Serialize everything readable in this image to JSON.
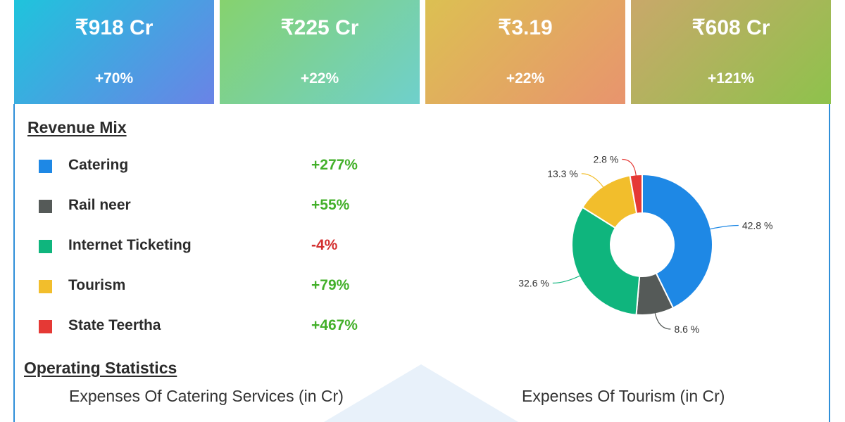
{
  "kpis": [
    {
      "value": "₹918 Cr",
      "change": "+70%"
    },
    {
      "value": "₹225 Cr",
      "change": "+22%"
    },
    {
      "value": "₹3.19",
      "change": "+22%"
    },
    {
      "value": "₹608 Cr",
      "change": "+121%"
    }
  ],
  "revenue_mix": {
    "title": "Revenue Mix",
    "items": [
      {
        "label": "Catering",
        "change": "+277%",
        "color": "#1e88e5",
        "change_color": "#43b02a"
      },
      {
        "label": "Rail neer",
        "change": "+55%",
        "color": "#555a58",
        "change_color": "#43b02a"
      },
      {
        "label": "Internet Ticketing",
        "change": "-4%",
        "color": "#0fb57d",
        "change_color": "#d32f2f"
      },
      {
        "label": "Tourism",
        "change": "+79%",
        "color": "#f2be2c",
        "change_color": "#43b02a"
      },
      {
        "label": "State Teertha",
        "change": "+467%",
        "color": "#e53935",
        "change_color": "#43b02a"
      }
    ]
  },
  "chart_data": {
    "type": "pie",
    "donut": true,
    "categories": [
      "Catering",
      "Rail neer",
      "Internet Ticketing",
      "Tourism",
      "State Teertha"
    ],
    "values": [
      42.8,
      8.6,
      32.6,
      13.3,
      2.8
    ],
    "data_labels": [
      "42.8 %",
      "8.6 %",
      "32.6 %",
      "13.3 %",
      "2.8 %"
    ],
    "colors": [
      "#1e88e5",
      "#555a58",
      "#0fb57d",
      "#f2be2c",
      "#e53935"
    ]
  },
  "operating_statistics": {
    "title": "Operating Statistics",
    "left_chart_title": "Expenses Of Catering Services (in Cr)",
    "right_chart_title": "Expenses Of Tourism (in Cr)"
  }
}
